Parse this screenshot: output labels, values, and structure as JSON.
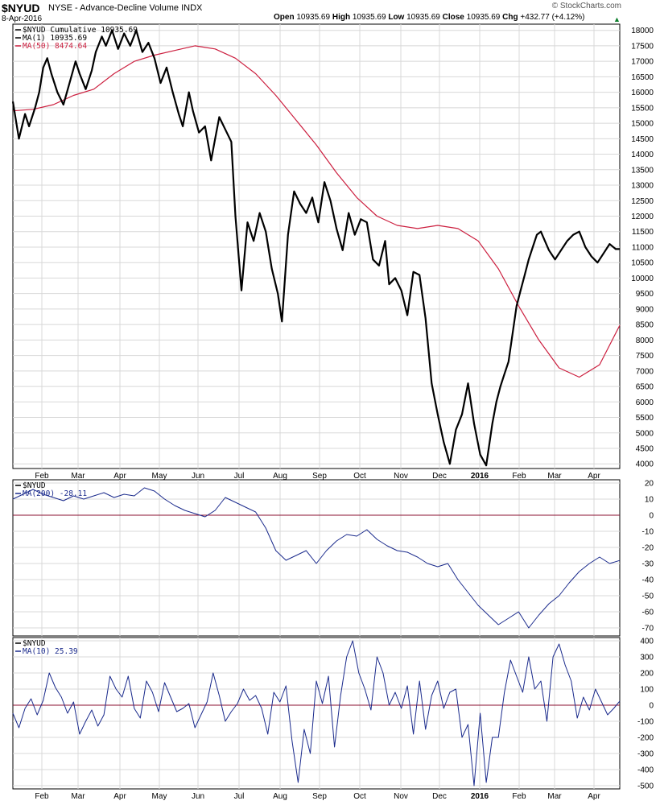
{
  "header": {
    "symbol": "$NYUD",
    "description": "NYSE - Advance-Decline Volume INDX",
    "date": "8-Apr-2016",
    "open_label": "Open",
    "open": "10935.69",
    "high_label": "High",
    "high": "10935.69",
    "low_label": "Low",
    "low": "10935.69",
    "close_label": "Close",
    "close": "10935.69",
    "chg_label": "Chg",
    "chg": "+432.77 (+4.12%)",
    "watermark": "© StockCharts.com"
  },
  "colors": {
    "price": "#000000",
    "ma50": "#cc1f3f",
    "indicator": "#1a2a8c",
    "zero_line": "#8b1030",
    "grid": "#d8d8d8"
  },
  "chart_data": [
    {
      "type": "line",
      "panel": "main",
      "legend": [
        "$NYUD Cumulative 10935.69",
        "MA(1) 10935.69",
        "MA(50) 8474.64"
      ],
      "x_axis_labels": [
        "Feb",
        "Mar",
        "Apr",
        "May",
        "Jun",
        "Jul",
        "Aug",
        "Sep",
        "Oct",
        "Nov",
        "Dec",
        "2016",
        "Feb",
        "Mar",
        "Apr"
      ],
      "y_ticks": [
        4000,
        4500,
        5000,
        5500,
        6000,
        6500,
        7000,
        7500,
        8000,
        8500,
        9000,
        9500,
        10000,
        10500,
        11000,
        11500,
        12000,
        12500,
        13000,
        13500,
        14000,
        14500,
        15000,
        15500,
        16000,
        16500,
        17000,
        17500,
        18000
      ],
      "ylim": [
        3850,
        18200
      ],
      "xlim": [
        0,
        300
      ],
      "series": [
        {
          "name": "$NYUD Cumulative",
          "x": [
            0,
            3,
            6,
            8,
            11,
            13,
            15,
            17,
            19,
            22,
            25,
            28,
            31,
            33,
            36,
            39,
            41,
            44,
            46,
            49,
            52,
            55,
            58,
            61,
            64,
            67,
            70,
            73,
            76,
            79,
            82,
            84,
            87,
            89,
            92,
            95,
            98,
            100,
            102,
            105,
            108,
            110,
            113,
            116,
            119,
            122,
            125,
            128,
            131,
            133,
            136,
            139,
            142,
            145,
            148,
            149,
            151,
            154,
            157,
            160,
            163,
            166,
            169,
            172,
            175,
            178,
            181,
            184,
            186,
            189,
            192,
            195,
            198,
            201,
            204,
            207,
            210,
            213,
            216,
            219,
            222,
            225,
            228,
            231,
            234,
            237,
            239,
            241,
            243,
            245,
            247,
            249,
            251,
            253,
            255,
            257,
            259,
            261,
            263,
            265,
            268,
            271,
            274,
            277,
            280,
            283,
            286,
            289,
            292,
            295,
            298,
            300
          ],
          "values": [
            15700,
            14500,
            15300,
            14900,
            15500,
            16000,
            16800,
            17100,
            16600,
            16000,
            15600,
            16300,
            17000,
            16600,
            16100,
            16700,
            17300,
            17800,
            17500,
            18000,
            17400,
            17900,
            17500,
            18000,
            17300,
            17600,
            17100,
            16300,
            16800,
            16000,
            15300,
            14900,
            16000,
            15400,
            14700,
            14900,
            13800,
            14500,
            15200,
            14800,
            14400,
            12000,
            9600,
            11800,
            11200,
            12100,
            11500,
            10300,
            9500,
            8600,
            11400,
            12800,
            12400,
            12100,
            12600,
            12300,
            11800,
            13100,
            12500,
            11600,
            10900,
            12100,
            11400,
            11900,
            11800,
            10600,
            10400,
            11200,
            9800,
            10000,
            9600,
            8800,
            10200,
            10100,
            8700,
            6600,
            5600,
            4700,
            4000,
            5100,
            5600,
            6600,
            5300,
            4300,
            3950,
            5300,
            6000,
            6500,
            6900,
            7300,
            8200,
            9100,
            9600,
            10100,
            10600,
            11000,
            11400,
            11500,
            11200,
            10900,
            10600,
            10900,
            11200,
            11400,
            11500,
            11000,
            10700,
            10500,
            10800,
            11100,
            10935.69,
            10935.69
          ]
        },
        {
          "name": "MA(50)",
          "x": [
            0,
            10,
            20,
            30,
            40,
            50,
            60,
            70,
            80,
            90,
            100,
            110,
            120,
            130,
            140,
            150,
            160,
            170,
            180,
            190,
            200,
            210,
            220,
            230,
            240,
            250,
            260,
            270,
            280,
            290,
            300
          ],
          "values": [
            15400,
            15450,
            15600,
            15900,
            16100,
            16600,
            17000,
            17200,
            17350,
            17500,
            17400,
            17100,
            16600,
            15900,
            15100,
            14300,
            13400,
            12600,
            12000,
            11700,
            11600,
            11700,
            11600,
            11200,
            10300,
            9100,
            8000,
            7100,
            6800,
            7200,
            8474.64
          ]
        }
      ]
    },
    {
      "type": "line",
      "panel": "middle",
      "legend": [
        "$NYUD",
        "MA(200) -28.11"
      ],
      "x_axis_labels": [],
      "y_ticks": [
        20,
        10,
        0,
        -10,
        -20,
        -30,
        -40,
        -50,
        -60,
        -70
      ],
      "ylim": [
        -75,
        22
      ],
      "xlim": [
        0,
        300
      ],
      "reference_line": 0,
      "series": [
        {
          "name": "MA(200)",
          "x": [
            0,
            5,
            10,
            15,
            20,
            25,
            30,
            35,
            40,
            45,
            50,
            55,
            60,
            65,
            70,
            75,
            80,
            85,
            90,
            95,
            100,
            105,
            110,
            115,
            120,
            125,
            130,
            135,
            140,
            145,
            150,
            155,
            160,
            165,
            170,
            175,
            180,
            185,
            190,
            195,
            200,
            205,
            210,
            215,
            220,
            225,
            230,
            235,
            240,
            245,
            250,
            255,
            260,
            265,
            270,
            275,
            280,
            285,
            290,
            295,
            300
          ],
          "values": [
            10,
            13,
            16,
            13,
            11,
            9,
            12,
            10,
            12,
            14,
            11,
            13,
            12,
            17,
            15,
            10,
            6,
            3,
            1,
            -1,
            3,
            11,
            8,
            5,
            2,
            -8,
            -22,
            -28,
            -25,
            -22,
            -30,
            -22,
            -16,
            -12,
            -13,
            -9,
            -15,
            -19,
            -22,
            -23,
            -26,
            -30,
            -32,
            -30,
            -40,
            -48,
            -56,
            -62,
            -68,
            -64,
            -60,
            -70,
            -62,
            -55,
            -50,
            -42,
            -35,
            -30,
            -26,
            -30,
            -28.11
          ]
        }
      ]
    },
    {
      "type": "line",
      "panel": "bottom",
      "legend": [
        "$NYUD",
        "MA(10) 25.39"
      ],
      "x_axis_labels": [
        "Feb",
        "Mar",
        "Apr",
        "May",
        "Jun",
        "Jul",
        "Aug",
        "Sep",
        "Oct",
        "Nov",
        "Dec",
        "2016",
        "Feb",
        "Mar",
        "Apr"
      ],
      "y_ticks": [
        400,
        300,
        200,
        100,
        0,
        -100,
        -200,
        -300,
        -400,
        -500
      ],
      "ylim": [
        -520,
        420
      ],
      "xlim": [
        0,
        300
      ],
      "reference_line": 0,
      "series": [
        {
          "name": "MA(10)",
          "x": [
            0,
            3,
            6,
            9,
            12,
            15,
            18,
            21,
            24,
            27,
            30,
            33,
            36,
            39,
            42,
            45,
            48,
            51,
            54,
            57,
            60,
            63,
            66,
            69,
            72,
            75,
            78,
            81,
            84,
            87,
            90,
            93,
            96,
            99,
            102,
            105,
            108,
            111,
            114,
            117,
            120,
            123,
            126,
            129,
            132,
            135,
            138,
            141,
            144,
            147,
            150,
            153,
            156,
            159,
            162,
            165,
            168,
            171,
            174,
            177,
            180,
            183,
            186,
            189,
            192,
            195,
            198,
            201,
            204,
            207,
            210,
            213,
            216,
            219,
            222,
            225,
            228,
            231,
            234,
            237,
            240,
            243,
            246,
            249,
            252,
            255,
            258,
            261,
            264,
            267,
            270,
            273,
            276,
            279,
            282,
            285,
            288,
            291,
            294,
            297,
            300
          ],
          "values": [
            -50,
            -140,
            -20,
            40,
            -60,
            30,
            200,
            110,
            50,
            -50,
            20,
            -180,
            -100,
            -30,
            -130,
            -60,
            180,
            100,
            50,
            180,
            -20,
            -80,
            150,
            80,
            -40,
            140,
            50,
            -40,
            -20,
            10,
            -140,
            -60,
            20,
            200,
            60,
            -100,
            -40,
            10,
            100,
            30,
            60,
            -20,
            -180,
            80,
            20,
            120,
            -220,
            -480,
            -150,
            -300,
            150,
            10,
            180,
            -260,
            60,
            300,
            400,
            200,
            100,
            -30,
            300,
            200,
            0,
            80,
            -20,
            120,
            -180,
            150,
            -150,
            60,
            150,
            -20,
            80,
            100,
            -200,
            -120,
            -500,
            -50,
            -480,
            -200,
            -200,
            80,
            280,
            180,
            80,
            300,
            100,
            150,
            -100,
            300,
            380,
            250,
            150,
            -80,
            50,
            -30,
            100,
            20,
            -60,
            -20,
            25.39
          ]
        }
      ]
    }
  ]
}
